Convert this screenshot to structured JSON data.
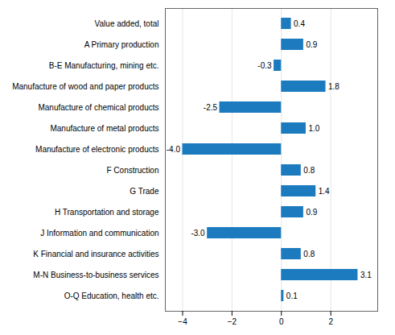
{
  "chart_data": {
    "type": "bar",
    "orientation": "horizontal",
    "categories": [
      "O-Q Education, health etc.",
      "M-N Business-to-business services",
      "K Financial and insurance activities",
      "J Information and communication",
      "H Transportation and storage",
      "G Trade",
      "F Construction",
      "Manufacture of electronic products",
      "Manufacture of metal products",
      "Manufacture of chemical products",
      "Manufacture of wood and paper products",
      "B-E Manufacturing, mining etc.",
      "A Primary production",
      "Value added, total"
    ],
    "values": [
      0.1,
      3.1,
      0.8,
      -3.0,
      0.9,
      1.4,
      0.8,
      -4.0,
      1.0,
      -2.5,
      1.8,
      -0.3,
      0.9,
      0.4
    ],
    "value_labels": [
      "0.1",
      "3.1",
      "0.8",
      "-3.0",
      "0.9",
      "1.4",
      "0.8",
      "-4.0",
      "1.0",
      "-2.5",
      "1.8",
      "-0.3",
      "0.9",
      "0.4"
    ],
    "color": "#1c7bbf",
    "xlim": [
      -4.7,
      3.9
    ],
    "xticks": [
      -4,
      -2,
      0,
      2
    ],
    "grid": true,
    "data_labels": true
  }
}
